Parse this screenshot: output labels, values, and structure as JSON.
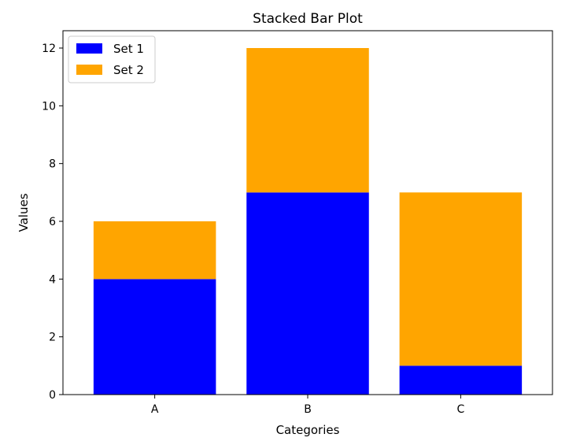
{
  "chart_data": {
    "type": "bar",
    "stacked": true,
    "title": "Stacked Bar Plot",
    "xlabel": "Categories",
    "ylabel": "Values",
    "categories": [
      "A",
      "B",
      "C"
    ],
    "series": [
      {
        "name": "Set 1",
        "values": [
          4,
          7,
          1
        ],
        "color": "#0000ff"
      },
      {
        "name": "Set 2",
        "values": [
          2,
          5,
          6
        ],
        "color": "#ffa500"
      }
    ],
    "ylim": [
      0,
      12.6
    ],
    "yticks": [
      0,
      2,
      4,
      6,
      8,
      10,
      12
    ],
    "grid": false,
    "legend_position": "top-left"
  }
}
